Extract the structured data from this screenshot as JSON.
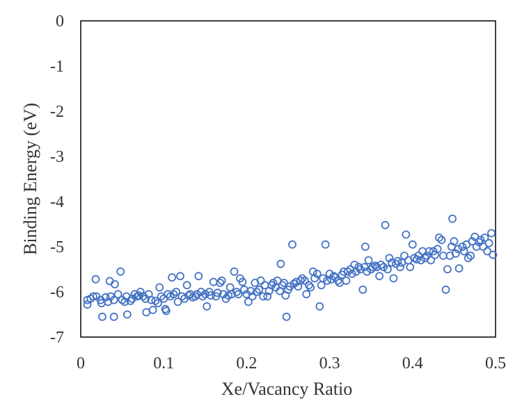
{
  "chart_data": {
    "type": "scatter",
    "title": "",
    "xlabel": "Xe/Vacancy Ratio",
    "ylabel": "Binding Energy (eV)",
    "xlim": [
      0,
      0.5
    ],
    "ylim": [
      -7,
      0
    ],
    "xticks": [
      "0",
      "0.1",
      "0.2",
      "0.3",
      "0.4",
      "0.5"
    ],
    "yticks": [
      "0",
      "-1",
      "-2",
      "-3",
      "-4",
      "-5",
      "-6",
      "-7"
    ],
    "grid": false,
    "legend": "none",
    "marker": "open-circle",
    "color": "#4472C4",
    "series": [
      {
        "points": [
          [
            0.008,
            -6.18
          ],
          [
            0.008,
            -6.28
          ],
          [
            0.012,
            -6.15
          ],
          [
            0.015,
            -6.1
          ],
          [
            0.018,
            -5.72
          ],
          [
            0.019,
            -6.1
          ],
          [
            0.024,
            -6.18
          ],
          [
            0.025,
            -6.25
          ],
          [
            0.026,
            -6.55
          ],
          [
            0.03,
            -6.12
          ],
          [
            0.033,
            -6.22
          ],
          [
            0.035,
            -5.76
          ],
          [
            0.036,
            -6.1
          ],
          [
            0.04,
            -6.18
          ],
          [
            0.041,
            -5.83
          ],
          [
            0.04,
            -6.55
          ],
          [
            0.045,
            -6.05
          ],
          [
            0.048,
            -5.55
          ],
          [
            0.05,
            -6.18
          ],
          [
            0.053,
            -6.22
          ],
          [
            0.055,
            -6.1
          ],
          [
            0.056,
            -6.5
          ],
          [
            0.06,
            -6.2
          ],
          [
            0.062,
            -6.15
          ],
          [
            0.065,
            -6.05
          ],
          [
            0.068,
            -6.1
          ],
          [
            0.07,
            -6.08
          ],
          [
            0.072,
            -6.0
          ],
          [
            0.075,
            -6.1
          ],
          [
            0.078,
            -6.15
          ],
          [
            0.079,
            -6.45
          ],
          [
            0.082,
            -6.05
          ],
          [
            0.085,
            -6.18
          ],
          [
            0.087,
            -6.4
          ],
          [
            0.09,
            -6.2
          ],
          [
            0.093,
            -6.25
          ],
          [
            0.095,
            -5.9
          ],
          [
            0.097,
            -6.1
          ],
          [
            0.1,
            -6.15
          ],
          [
            0.102,
            -6.38
          ],
          [
            0.103,
            -6.42
          ],
          [
            0.105,
            -6.05
          ],
          [
            0.108,
            -6.1
          ],
          [
            0.11,
            -5.68
          ],
          [
            0.112,
            -6.05
          ],
          [
            0.115,
            -6.0
          ],
          [
            0.117,
            -6.22
          ],
          [
            0.12,
            -5.65
          ],
          [
            0.122,
            -6.1
          ],
          [
            0.125,
            -6.15
          ],
          [
            0.128,
            -5.85
          ],
          [
            0.13,
            -6.08
          ],
          [
            0.132,
            -6.05
          ],
          [
            0.135,
            -6.12
          ],
          [
            0.138,
            -6.1
          ],
          [
            0.14,
            -6.05
          ],
          [
            0.142,
            -5.65
          ],
          [
            0.145,
            -6.0
          ],
          [
            0.147,
            -6.1
          ],
          [
            0.15,
            -6.05
          ],
          [
            0.152,
            -6.32
          ],
          [
            0.155,
            -6.0
          ],
          [
            0.157,
            -6.08
          ],
          [
            0.16,
            -5.78
          ],
          [
            0.163,
            -6.1
          ],
          [
            0.165,
            -6.02
          ],
          [
            0.168,
            -5.8
          ],
          [
            0.17,
            -5.75
          ],
          [
            0.172,
            -6.05
          ],
          [
            0.175,
            -6.15
          ],
          [
            0.178,
            -6.08
          ],
          [
            0.18,
            -5.9
          ],
          [
            0.182,
            -6.05
          ],
          [
            0.185,
            -5.55
          ],
          [
            0.188,
            -6.0
          ],
          [
            0.19,
            -6.05
          ],
          [
            0.192,
            -5.7
          ],
          [
            0.195,
            -5.78
          ],
          [
            0.197,
            -5.95
          ],
          [
            0.2,
            -6.05
          ],
          [
            0.202,
            -6.22
          ],
          [
            0.205,
            -5.98
          ],
          [
            0.207,
            -6.1
          ],
          [
            0.21,
            -5.8
          ],
          [
            0.212,
            -6.0
          ],
          [
            0.215,
            -5.95
          ],
          [
            0.217,
            -5.75
          ],
          [
            0.22,
            -6.1
          ],
          [
            0.222,
            -5.85
          ],
          [
            0.225,
            -6.1
          ],
          [
            0.227,
            -5.98
          ],
          [
            0.23,
            -5.85
          ],
          [
            0.232,
            -5.8
          ],
          [
            0.235,
            -5.9
          ],
          [
            0.237,
            -5.75
          ],
          [
            0.24,
            -5.98
          ],
          [
            0.241,
            -5.38
          ],
          [
            0.243,
            -5.85
          ],
          [
            0.245,
            -5.8
          ],
          [
            0.247,
            -6.08
          ],
          [
            0.248,
            -6.55
          ],
          [
            0.25,
            -5.95
          ],
          [
            0.252,
            -5.88
          ],
          [
            0.255,
            -4.95
          ],
          [
            0.257,
            -5.82
          ],
          [
            0.26,
            -5.78
          ],
          [
            0.262,
            -5.88
          ],
          [
            0.265,
            -5.75
          ],
          [
            0.267,
            -5.7
          ],
          [
            0.27,
            -5.75
          ],
          [
            0.272,
            -6.05
          ],
          [
            0.275,
            -5.85
          ],
          [
            0.277,
            -5.9
          ],
          [
            0.28,
            -5.55
          ],
          [
            0.282,
            -5.7
          ],
          [
            0.285,
            -5.6
          ],
          [
            0.288,
            -6.32
          ],
          [
            0.29,
            -5.85
          ],
          [
            0.292,
            -5.7
          ],
          [
            0.295,
            -4.95
          ],
          [
            0.297,
            -5.75
          ],
          [
            0.3,
            -5.6
          ],
          [
            0.302,
            -5.72
          ],
          [
            0.305,
            -5.65
          ],
          [
            0.307,
            -5.68
          ],
          [
            0.31,
            -5.75
          ],
          [
            0.312,
            -5.8
          ],
          [
            0.315,
            -5.62
          ],
          [
            0.317,
            -5.55
          ],
          [
            0.32,
            -5.75
          ],
          [
            0.322,
            -5.55
          ],
          [
            0.325,
            -5.5
          ],
          [
            0.327,
            -5.6
          ],
          [
            0.33,
            -5.4
          ],
          [
            0.332,
            -5.55
          ],
          [
            0.335,
            -5.45
          ],
          [
            0.337,
            -5.5
          ],
          [
            0.34,
            -5.95
          ],
          [
            0.342,
            -5.45
          ],
          [
            0.343,
            -5.0
          ],
          [
            0.345,
            -5.55
          ],
          [
            0.347,
            -5.3
          ],
          [
            0.35,
            -5.5
          ],
          [
            0.352,
            -5.45
          ],
          [
            0.355,
            -5.42
          ],
          [
            0.357,
            -5.45
          ],
          [
            0.36,
            -5.65
          ],
          [
            0.362,
            -5.4
          ],
          [
            0.365,
            -5.45
          ],
          [
            0.367,
            -4.52
          ],
          [
            0.37,
            -5.5
          ],
          [
            0.372,
            -5.25
          ],
          [
            0.375,
            -5.35
          ],
          [
            0.377,
            -5.7
          ],
          [
            0.38,
            -5.38
          ],
          [
            0.382,
            -5.32
          ],
          [
            0.385,
            -5.45
          ],
          [
            0.387,
            -5.35
          ],
          [
            0.39,
            -5.2
          ],
          [
            0.392,
            -4.73
          ],
          [
            0.395,
            -5.3
          ],
          [
            0.397,
            -5.45
          ],
          [
            0.4,
            -4.95
          ],
          [
            0.402,
            -5.25
          ],
          [
            0.405,
            -5.28
          ],
          [
            0.407,
            -5.2
          ],
          [
            0.41,
            -5.3
          ],
          [
            0.412,
            -5.1
          ],
          [
            0.415,
            -5.25
          ],
          [
            0.417,
            -5.2
          ],
          [
            0.42,
            -5.1
          ],
          [
            0.422,
            -5.3
          ],
          [
            0.425,
            -5.1
          ],
          [
            0.427,
            -5.18
          ],
          [
            0.43,
            -5.05
          ],
          [
            0.432,
            -4.8
          ],
          [
            0.435,
            -4.85
          ],
          [
            0.437,
            -5.2
          ],
          [
            0.44,
            -5.95
          ],
          [
            0.442,
            -5.5
          ],
          [
            0.445,
            -5.2
          ],
          [
            0.447,
            -5.0
          ],
          [
            0.448,
            -4.38
          ],
          [
            0.45,
            -4.88
          ],
          [
            0.452,
            -5.15
          ],
          [
            0.455,
            -5.05
          ],
          [
            0.456,
            -5.48
          ],
          [
            0.46,
            -5.0
          ],
          [
            0.462,
            -5.1
          ],
          [
            0.465,
            -4.95
          ],
          [
            0.467,
            -5.25
          ],
          [
            0.47,
            -5.2
          ],
          [
            0.472,
            -4.88
          ],
          [
            0.475,
            -4.78
          ],
          [
            0.477,
            -5.0
          ],
          [
            0.48,
            -4.9
          ],
          [
            0.482,
            -4.85
          ],
          [
            0.485,
            -5.0
          ],
          [
            0.487,
            -4.8
          ],
          [
            0.49,
            -5.1
          ],
          [
            0.492,
            -4.92
          ],
          [
            0.495,
            -4.7
          ],
          [
            0.497,
            -5.18
          ]
        ]
      }
    ]
  }
}
